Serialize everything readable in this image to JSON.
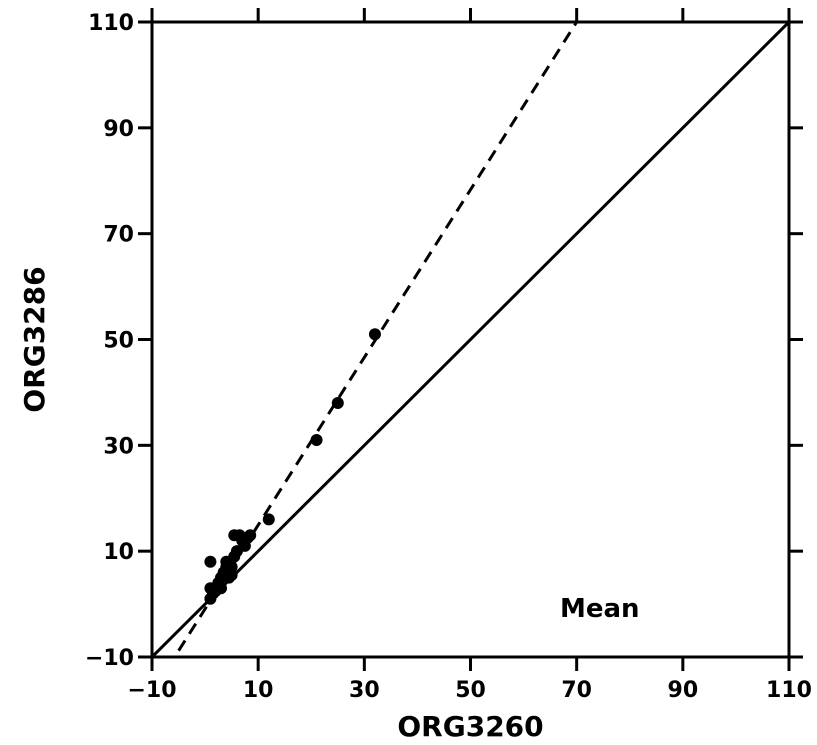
{
  "chart_data": {
    "type": "scatter",
    "title": "",
    "xlabel": "ORG3260",
    "ylabel": "ORG3286",
    "xlim": [
      -10,
      110
    ],
    "ylim": [
      -10,
      110
    ],
    "xticks": [
      -10,
      10,
      30,
      50,
      70,
      90,
      110
    ],
    "yticks": [
      -10,
      10,
      30,
      50,
      70,
      90,
      110
    ],
    "xtick_labels": [
      "−10",
      "10",
      "30",
      "50",
      "70",
      "90",
      "110"
    ],
    "ytick_labels": [
      "−10",
      "10",
      "30",
      "50",
      "70",
      "90",
      "110"
    ],
    "grid": false,
    "annotation": "Mean",
    "points": [
      [
        1,
        8
      ],
      [
        1,
        1
      ],
      [
        1.5,
        2
      ],
      [
        1,
        3
      ],
      [
        2,
        2.5
      ],
      [
        2.5,
        4
      ],
      [
        3,
        3
      ],
      [
        3,
        5
      ],
      [
        3.5,
        6
      ],
      [
        4,
        7
      ],
      [
        4,
        8
      ],
      [
        4.5,
        5
      ],
      [
        5,
        5.5
      ],
      [
        5,
        7
      ],
      [
        5.5,
        9
      ],
      [
        5.5,
        13
      ],
      [
        6,
        10
      ],
      [
        6.5,
        13
      ],
      [
        7,
        12
      ],
      [
        7.5,
        11
      ],
      [
        8,
        12.5
      ],
      [
        8.5,
        13
      ],
      [
        12,
        16
      ],
      [
        21,
        31
      ],
      [
        25,
        38
      ],
      [
        32,
        51
      ]
    ],
    "lines": [
      {
        "style": "solid",
        "x": [
          -10,
          110
        ],
        "y": [
          -10,
          110
        ]
      },
      {
        "style": "dashed",
        "x": [
          -7,
          70
        ],
        "y": [
          -12,
          110
        ]
      }
    ]
  }
}
